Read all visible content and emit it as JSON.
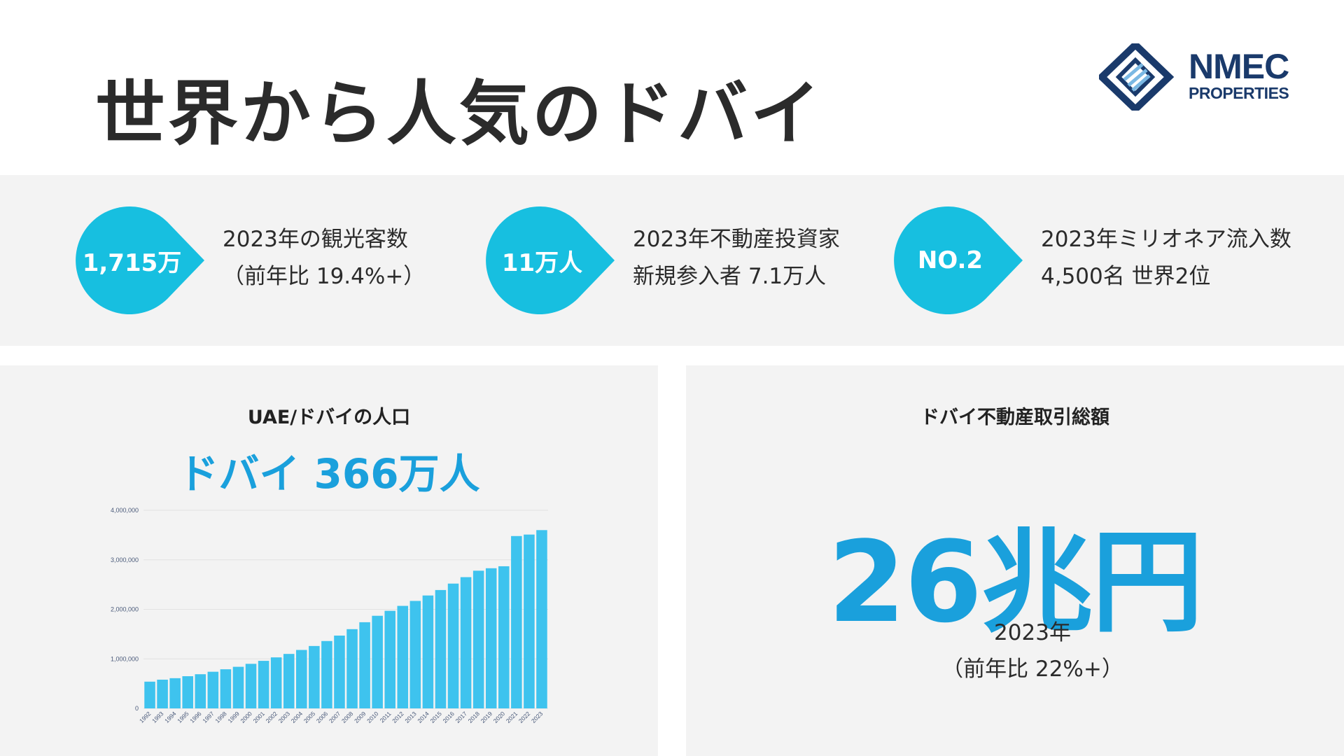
{
  "header": {
    "title": "世界から人気のドバイ",
    "logo": {
      "line1": "NMEC",
      "line2": "PROPERTIES",
      "color": "#1a3a6b"
    }
  },
  "stats": [
    {
      "value": "1,715万",
      "line1": "2023年の観光客数",
      "line2": "（前年比 19.4%+）"
    },
    {
      "value": "11万人",
      "line1": "2023年不動産投資家",
      "line2": "新規参入者 7.1万人"
    },
    {
      "value": "NO.2",
      "line1": "2023年ミリオネア流入数",
      "line2": "4,500名 世界2位"
    }
  ],
  "population": {
    "title": "UAE/ドバイの人口",
    "headline": "ドバイ 366万人"
  },
  "transactions": {
    "title": "ドバイ不動産取引総額",
    "amount": "26兆円",
    "year": "2023年",
    "growth": "（前年比 22%+）"
  },
  "colors": {
    "accent": "#1aa0dc",
    "bubble": "#17bfe0",
    "bar": "#3ec3ee",
    "band": "#f3f3f3"
  },
  "chart_data": {
    "type": "bar",
    "categories": [
      "1992",
      "1993",
      "1994",
      "1995",
      "1996",
      "1997",
      "1998",
      "1999",
      "2000",
      "2001",
      "2002",
      "2003",
      "2004",
      "2005",
      "2006",
      "2007",
      "2008",
      "2009",
      "2010",
      "2011",
      "2012",
      "2013",
      "2014",
      "2015",
      "2016",
      "2017",
      "2018",
      "2019",
      "2020",
      "2021",
      "2022",
      "2023"
    ],
    "values": [
      540000,
      580000,
      610000,
      650000,
      690000,
      740000,
      790000,
      840000,
      900000,
      960000,
      1030000,
      1100000,
      1180000,
      1260000,
      1360000,
      1470000,
      1600000,
      1740000,
      1870000,
      1970000,
      2070000,
      2170000,
      2280000,
      2390000,
      2520000,
      2650000,
      2780000,
      2830000,
      2870000,
      3480000,
      3510000,
      3600000
    ],
    "yticks": [
      "0",
      "1,000,000",
      "2,000,000",
      "3,000,000",
      "4,000,000"
    ],
    "ylim": [
      0,
      4000000
    ],
    "grid": true
  }
}
